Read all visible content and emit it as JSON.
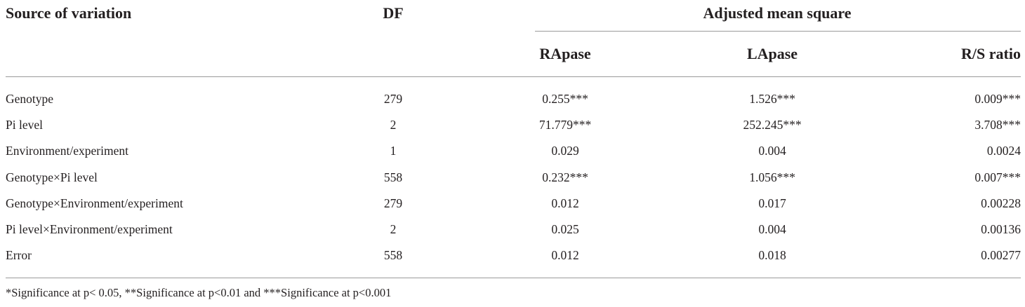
{
  "table": {
    "headers": {
      "source": "Source of variation",
      "df": "DF",
      "group": "Adjusted mean square",
      "rapase": "RApase",
      "lapase": "LApase",
      "rs_ratio": "R/S ratio"
    },
    "rows": [
      {
        "source": "Genotype",
        "df": "279",
        "rapase": "0.255***",
        "lapase": "1.526***",
        "rs_ratio": "0.009***"
      },
      {
        "source": "Pi level",
        "df": "2",
        "rapase": "71.779***",
        "lapase": "252.245***",
        "rs_ratio": "3.708***"
      },
      {
        "source": "Environment/experiment",
        "df": "1",
        "rapase": "0.029",
        "lapase": "0.004",
        "rs_ratio": "0.0024"
      },
      {
        "source": "Genotype×Pi level",
        "df": "558",
        "rapase": "0.232***",
        "lapase": "1.056***",
        "rs_ratio": "0.007***"
      },
      {
        "source": "Genotype×Environment/experiment",
        "df": "279",
        "rapase": "0.012",
        "lapase": "0.017",
        "rs_ratio": "0.00228"
      },
      {
        "source": "Pi level×Environment/experiment",
        "df": "2",
        "rapase": "0.025",
        "lapase": "0.004",
        "rs_ratio": "0.00136"
      },
      {
        "source": "Error",
        "df": "558",
        "rapase": "0.012",
        "lapase": "0.018",
        "rs_ratio": "0.00277"
      }
    ],
    "footnote": "*Significance at p< 0.05, **Significance at p<0.01 and ***Significance at p<0.001"
  }
}
